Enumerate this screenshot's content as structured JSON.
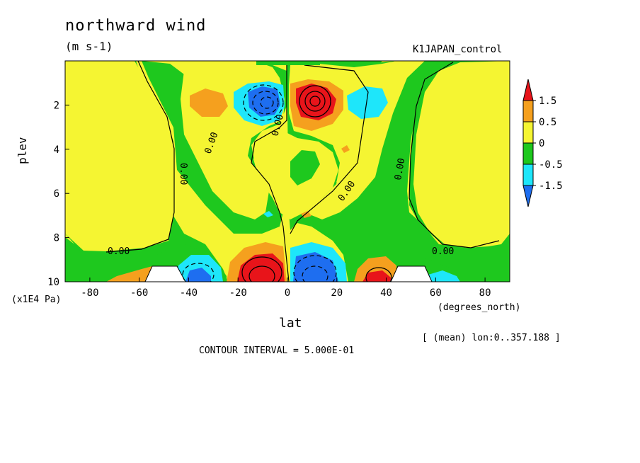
{
  "chart_data": {
    "type": "contour",
    "title": "northward wind",
    "units": "(m s-1)",
    "run_label": "K1JAPAN_control",
    "xlabel": "lat",
    "x_unit_label": "(degrees_north)",
    "ylabel": "plev",
    "y_unit_label": "(x1E4 Pa)",
    "xlim": [
      -90,
      90
    ],
    "ylim": [
      0,
      10
    ],
    "y_inverted": true,
    "x_ticks": [
      "-80",
      "-60",
      "-40",
      "-20",
      "0",
      "20",
      "40",
      "60",
      "80"
    ],
    "y_ticks": [
      "2",
      "4",
      "6",
      "8",
      "10"
    ],
    "averaging_note": "[ (mean) lon:0..357.188 ]",
    "contour_interval_label": "CONTOUR INTERVAL = 5.000E-01",
    "contour_labels": [
      "0.00",
      "0.00",
      "0.00",
      "0.00",
      "0.00",
      "0.00",
      "0.00",
      "0.00"
    ],
    "colorbar": {
      "labels": [
        "1.5",
        "0.5",
        "0",
        "-0.5",
        "-1.5"
      ],
      "colors": [
        "#e8141a",
        "#f5a01e",
        "#f5f532",
        "#1ec81e",
        "#1ee6fa",
        "#1e6ef0"
      ]
    },
    "features": [
      {
        "name": "positive max upper",
        "lat": 10,
        "plev": 2,
        "sign": "positive"
      },
      {
        "name": "negative min upper",
        "lat": -10,
        "plev": 2,
        "sign": "negative"
      },
      {
        "name": "positive max lower",
        "lat": -10,
        "plev": 9.5,
        "sign": "positive"
      },
      {
        "name": "negative min lower",
        "lat": 10,
        "plev": 9.5,
        "sign": "negative"
      },
      {
        "name": "negative lower",
        "lat": -35,
        "plev": 9.5,
        "sign": "negative"
      },
      {
        "name": "positive lower",
        "lat": 35,
        "plev": 9.5,
        "sign": "positive"
      },
      {
        "name": "negative upper",
        "lat": 35,
        "plev": 2,
        "sign": "negative"
      },
      {
        "name": "positive upper",
        "lat": -40,
        "plev": 2,
        "sign": "positive"
      }
    ]
  }
}
